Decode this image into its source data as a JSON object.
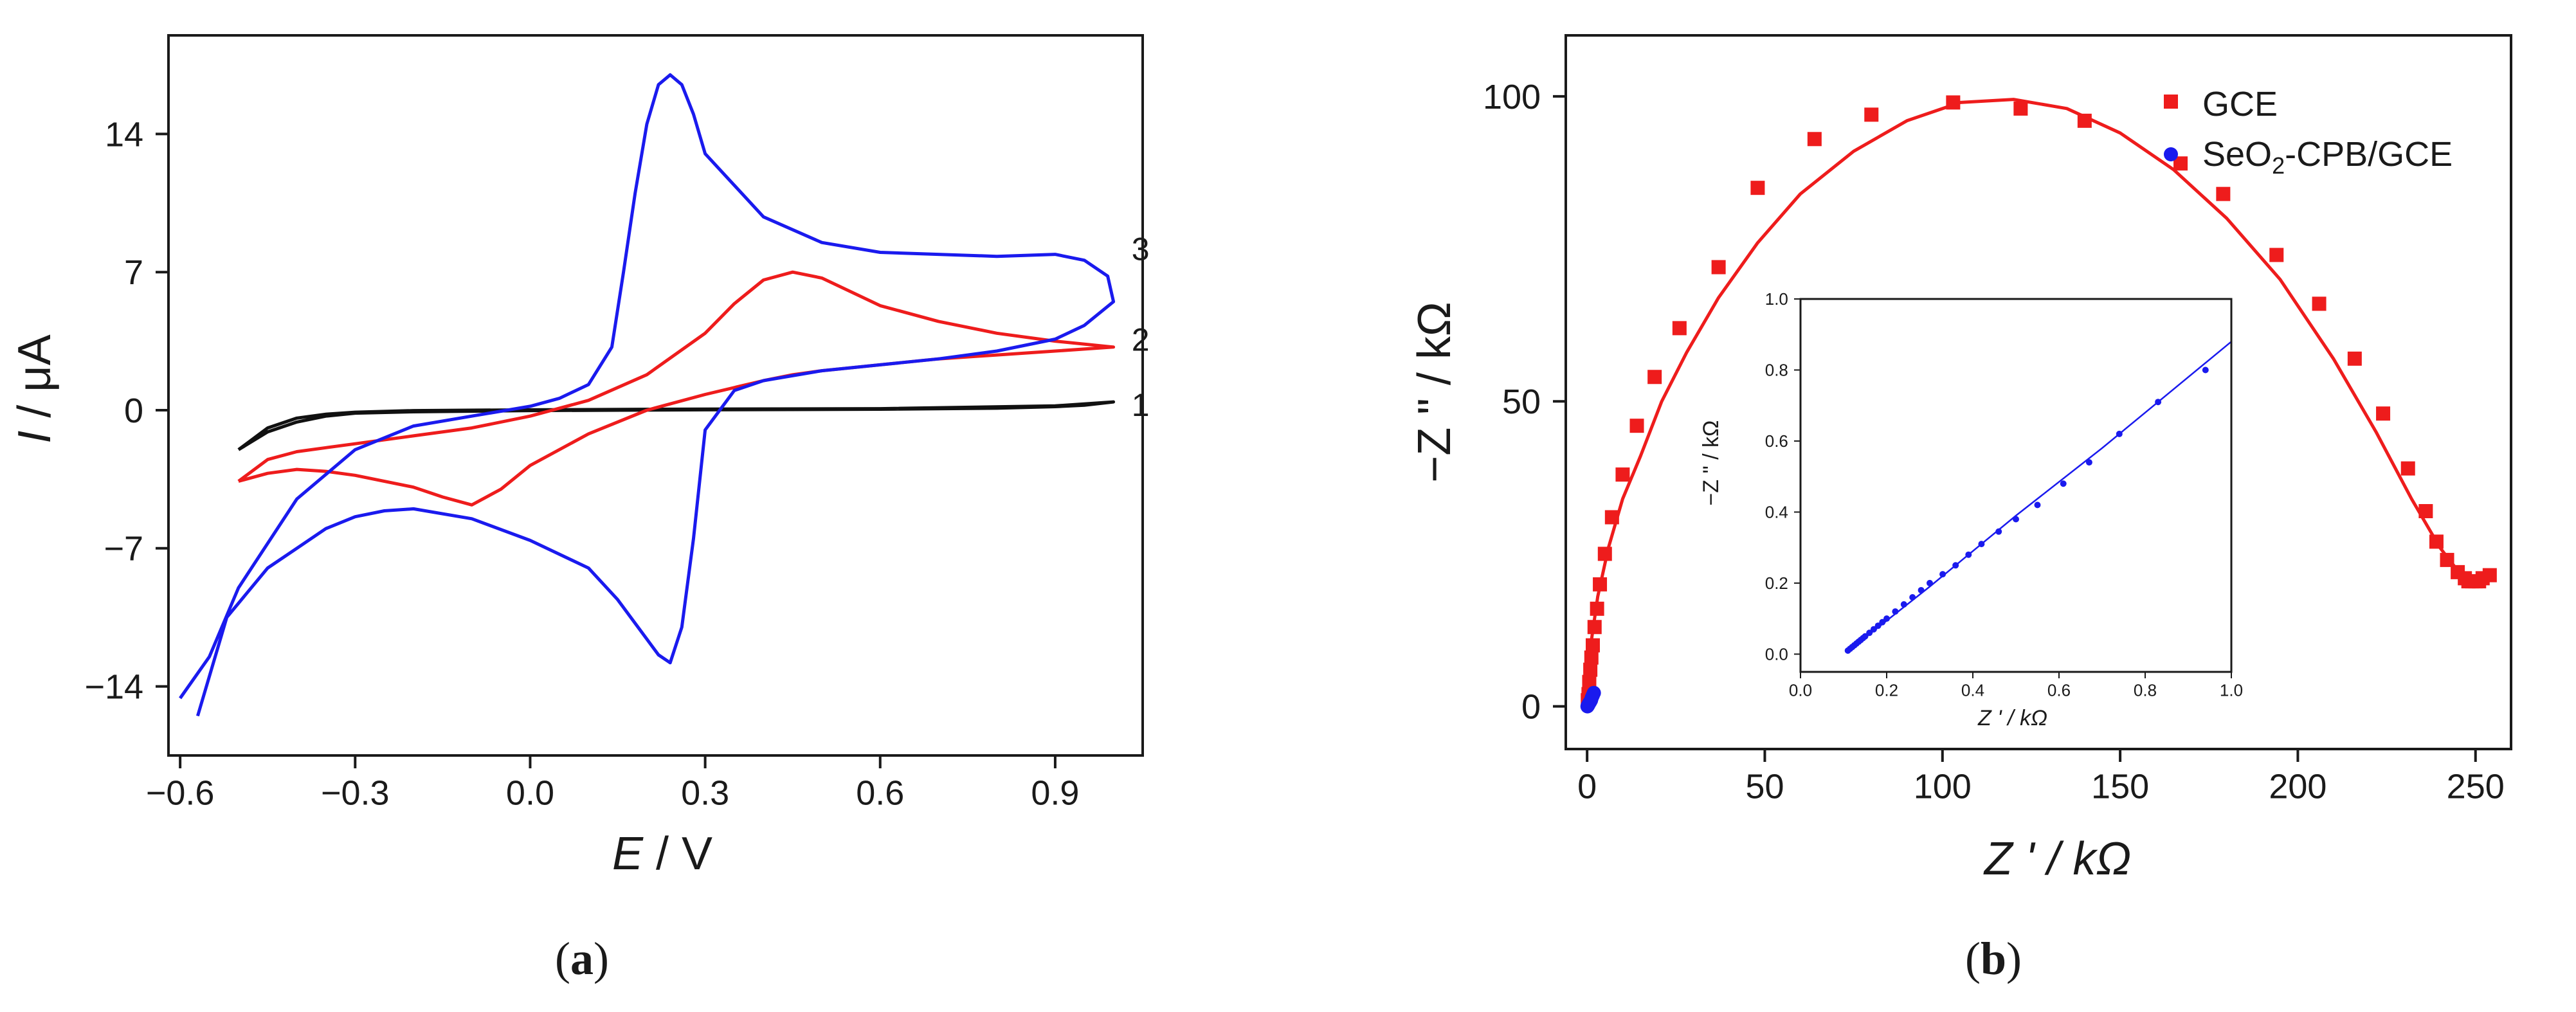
{
  "colors": {
    "axis": "#1a1a1a",
    "red": "#ee1c1c",
    "blue": "#1a1aee",
    "black": "#111111"
  },
  "panel_a": {
    "label_open": "(",
    "label_letter": "a",
    "label_close": ")"
  },
  "panel_b": {
    "label_open": "(",
    "label_letter": "b",
    "label_close": ")"
  },
  "chart_data": [
    {
      "id": "cv",
      "type": "line",
      "title": "",
      "xlabel": {
        "italic": "E",
        "rest": " / V"
      },
      "ylabel": {
        "italic": "I",
        "rest": " / μA"
      },
      "xlim": [
        -0.62,
        1.05
      ],
      "ylim": [
        -17.5,
        19
      ],
      "xticks": [
        -0.6,
        -0.3,
        0.0,
        0.3,
        0.6,
        0.9
      ],
      "xtick_labels": [
        "−0.6",
        "−0.3",
        "0.0",
        "0.3",
        "0.6",
        "0.9"
      ],
      "yticks": [
        -14,
        -7,
        0,
        7,
        14
      ],
      "ytick_labels": [
        "−14",
        "−7",
        "0",
        "7",
        "14"
      ],
      "grid": false,
      "series": [
        {
          "name": "1",
          "color": "#111111",
          "x": [
            -0.5,
            -0.45,
            -0.4,
            -0.35,
            -0.3,
            -0.2,
            0.0,
            0.3,
            0.6,
            0.8,
            0.9,
            0.95,
            1.0,
            1.0,
            0.9,
            0.6,
            0.3,
            0.0,
            -0.2,
            -0.3,
            -0.35,
            -0.4,
            -0.45,
            -0.5
          ],
          "y": [
            -2.0,
            -1.1,
            -0.6,
            -0.3,
            -0.15,
            -0.08,
            -0.02,
            0.02,
            0.05,
            0.1,
            0.18,
            0.25,
            0.42,
            0.42,
            0.22,
            0.08,
            0.06,
            0.02,
            -0.02,
            -0.1,
            -0.2,
            -0.4,
            -0.9,
            -2.0
          ]
        },
        {
          "name": "2",
          "color": "#ee1c1c",
          "x": [
            -0.5,
            -0.45,
            -0.4,
            -0.35,
            -0.3,
            -0.2,
            -0.1,
            0.0,
            0.1,
            0.2,
            0.3,
            0.35,
            0.4,
            0.45,
            0.5,
            0.55,
            0.6,
            0.7,
            0.8,
            0.9,
            1.0,
            0.9,
            0.8,
            0.7,
            0.6,
            0.5,
            0.45,
            0.4,
            0.3,
            0.2,
            0.1,
            0.0,
            -0.05,
            -0.1,
            -0.15,
            -0.2,
            -0.3,
            -0.35,
            -0.4,
            -0.45,
            -0.5
          ],
          "y": [
            -3.6,
            -2.5,
            -2.1,
            -1.9,
            -1.7,
            -1.3,
            -0.9,
            -0.3,
            0.5,
            1.8,
            3.9,
            5.4,
            6.6,
            7.0,
            6.7,
            6.0,
            5.3,
            4.5,
            3.9,
            3.5,
            3.2,
            3.0,
            2.8,
            2.6,
            2.3,
            2.0,
            1.8,
            1.5,
            0.8,
            0.0,
            -1.2,
            -2.8,
            -4.0,
            -4.8,
            -4.4,
            -3.9,
            -3.3,
            -3.1,
            -3.0,
            -3.2,
            -3.6
          ]
        },
        {
          "name": "3",
          "color": "#1a1aee",
          "x": [
            -0.57,
            -0.52,
            -0.45,
            -0.4,
            -0.35,
            -0.3,
            -0.25,
            -0.2,
            -0.1,
            0.0,
            0.1,
            0.15,
            0.2,
            0.22,
            0.24,
            0.26,
            0.28,
            0.3,
            0.35,
            0.4,
            0.5,
            0.6,
            0.7,
            0.8,
            0.9,
            0.95,
            1.0,
            0.99,
            0.95,
            0.9,
            0.8,
            0.6,
            0.5,
            0.4,
            0.3,
            0.28,
            0.26,
            0.24,
            0.22,
            0.2,
            0.18,
            0.16,
            0.14,
            0.1,
            0.05,
            0.0,
            -0.1,
            -0.2,
            -0.3,
            -0.4,
            -0.5,
            -0.55,
            -0.6
          ],
          "y": [
            -15.5,
            -10.5,
            -8.0,
            -7.0,
            -6.0,
            -5.4,
            -5.1,
            -5.0,
            -5.5,
            -6.6,
            -8.0,
            -9.6,
            -11.6,
            -12.4,
            -12.8,
            -11.0,
            -6.5,
            -1.0,
            1.0,
            1.5,
            2.0,
            2.3,
            2.6,
            3.0,
            3.6,
            4.3,
            5.5,
            6.8,
            7.6,
            7.9,
            7.8,
            8.0,
            8.5,
            9.8,
            13.0,
            15.0,
            16.5,
            17.0,
            16.5,
            14.5,
            11.0,
            7.0,
            3.2,
            1.3,
            0.6,
            0.2,
            -0.3,
            -0.8,
            -2.0,
            -4.5,
            -9.0,
            -12.5,
            -14.6
          ]
        }
      ],
      "curve_labels": [
        {
          "text": "1",
          "x": 1.02,
          "y": 0.3
        },
        {
          "text": "2",
          "x": 1.02,
          "y": 3.6
        },
        {
          "text": "3",
          "x": 1.02,
          "y": 8.2
        }
      ]
    },
    {
      "id": "nyquist",
      "type": "scatter",
      "title": "",
      "xlabel": {
        "text": "Z ' / kΩ"
      },
      "ylabel": {
        "text": "−Z \" / kΩ"
      },
      "xlim": [
        -6,
        260
      ],
      "ylim": [
        -7,
        110
      ],
      "xticks": [
        0,
        50,
        100,
        150,
        200,
        250
      ],
      "xtick_labels": [
        "0",
        "50",
        "100",
        "150",
        "200",
        "250"
      ],
      "yticks": [
        0,
        50,
        100
      ],
      "ytick_labels": [
        "0",
        "50",
        "100"
      ],
      "grid": false,
      "legend_position": "top-right",
      "series": [
        {
          "name": "GCE",
          "marker": "square",
          "color": "#ee1c1c",
          "x": [
            0.2,
            0.4,
            0.6,
            0.9,
            1.2,
            1.6,
            2.1,
            2.8,
            3.6,
            5,
            7,
            10,
            14,
            19,
            26,
            37,
            48,
            64,
            80,
            103,
            122,
            140,
            167,
            179,
            194,
            206,
            216,
            224,
            231,
            236,
            239,
            242,
            245,
            247,
            248,
            249,
            250,
            251,
            252,
            254
          ],
          "y": [
            1,
            2,
            4,
            6,
            8,
            10,
            13,
            16,
            20,
            25,
            31,
            38,
            46,
            54,
            62,
            72,
            85,
            93,
            97,
            99,
            98,
            96,
            89,
            84,
            74,
            66,
            57,
            48,
            39,
            32,
            27,
            24,
            22,
            21,
            20.5,
            20.5,
            20.5,
            20.5,
            21,
            21.5
          ]
        },
        {
          "name": "SeO",
          "name_sub": "2",
          "name_rest": "-CPB/GCE",
          "marker": "circle",
          "color": "#1a1aee",
          "x": [
            0.1,
            0.2,
            0.3,
            0.4,
            0.5,
            0.7,
            0.9,
            1.1,
            1.3,
            1.6,
            1.9
          ],
          "y": [
            0.0,
            0.1,
            0.2,
            0.3,
            0.45,
            0.6,
            0.8,
            1.0,
            1.4,
            1.8,
            2.2
          ]
        }
      ],
      "fit_curve": {
        "color": "#ee1c1c",
        "x": [
          0,
          1,
          3,
          6,
          10,
          15,
          21,
          28,
          37,
          48,
          60,
          75,
          90,
          105,
          120,
          135,
          150,
          165,
          180,
          195,
          210,
          222,
          232,
          240,
          246,
          250
        ],
        "y": [
          0,
          10,
          18,
          26,
          34,
          41,
          50,
          58,
          67,
          76,
          84,
          91,
          96,
          99,
          99.5,
          98,
          94,
          88,
          80,
          70,
          57,
          45,
          34,
          26,
          21.5,
          20.5
        ]
      },
      "inset": {
        "type": "scatter",
        "xlabel": {
          "text": "Z ' / kΩ"
        },
        "ylabel": {
          "text": "−Z \" / kΩ"
        },
        "xlim": [
          0,
          1
        ],
        "ylim": [
          -0.05,
          1
        ],
        "xticks": [
          0,
          0.2,
          0.4,
          0.6,
          0.8,
          1.0
        ],
        "xtick_labels": [
          "0.0",
          "0.2",
          "0.4",
          "0.6",
          "0.8",
          "1.0"
        ],
        "yticks": [
          0,
          0.2,
          0.4,
          0.6,
          0.8,
          1.0
        ],
        "ytick_labels": [
          "0.0",
          "0.2",
          "0.4",
          "0.6",
          "0.8",
          "1.0"
        ],
        "color": "#1a1aee",
        "x": [
          0.11,
          0.115,
          0.12,
          0.125,
          0.13,
          0.135,
          0.14,
          0.145,
          0.15,
          0.16,
          0.17,
          0.18,
          0.19,
          0.2,
          0.22,
          0.24,
          0.26,
          0.28,
          0.3,
          0.33,
          0.36,
          0.39,
          0.42,
          0.46,
          0.5,
          0.55,
          0.61,
          0.67,
          0.74,
          0.83,
          0.94
        ],
        "y": [
          0.01,
          0.015,
          0.02,
          0.025,
          0.03,
          0.035,
          0.04,
          0.045,
          0.05,
          0.06,
          0.07,
          0.08,
          0.09,
          0.1,
          0.12,
          0.14,
          0.16,
          0.18,
          0.2,
          0.225,
          0.25,
          0.28,
          0.31,
          0.345,
          0.38,
          0.42,
          0.48,
          0.54,
          0.62,
          0.71,
          0.8
        ],
        "fit_x": [
          0.11,
          0.3,
          0.5,
          0.7,
          1.0
        ],
        "fit_y": [
          0.008,
          0.19,
          0.39,
          0.58,
          0.88
        ]
      }
    }
  ]
}
